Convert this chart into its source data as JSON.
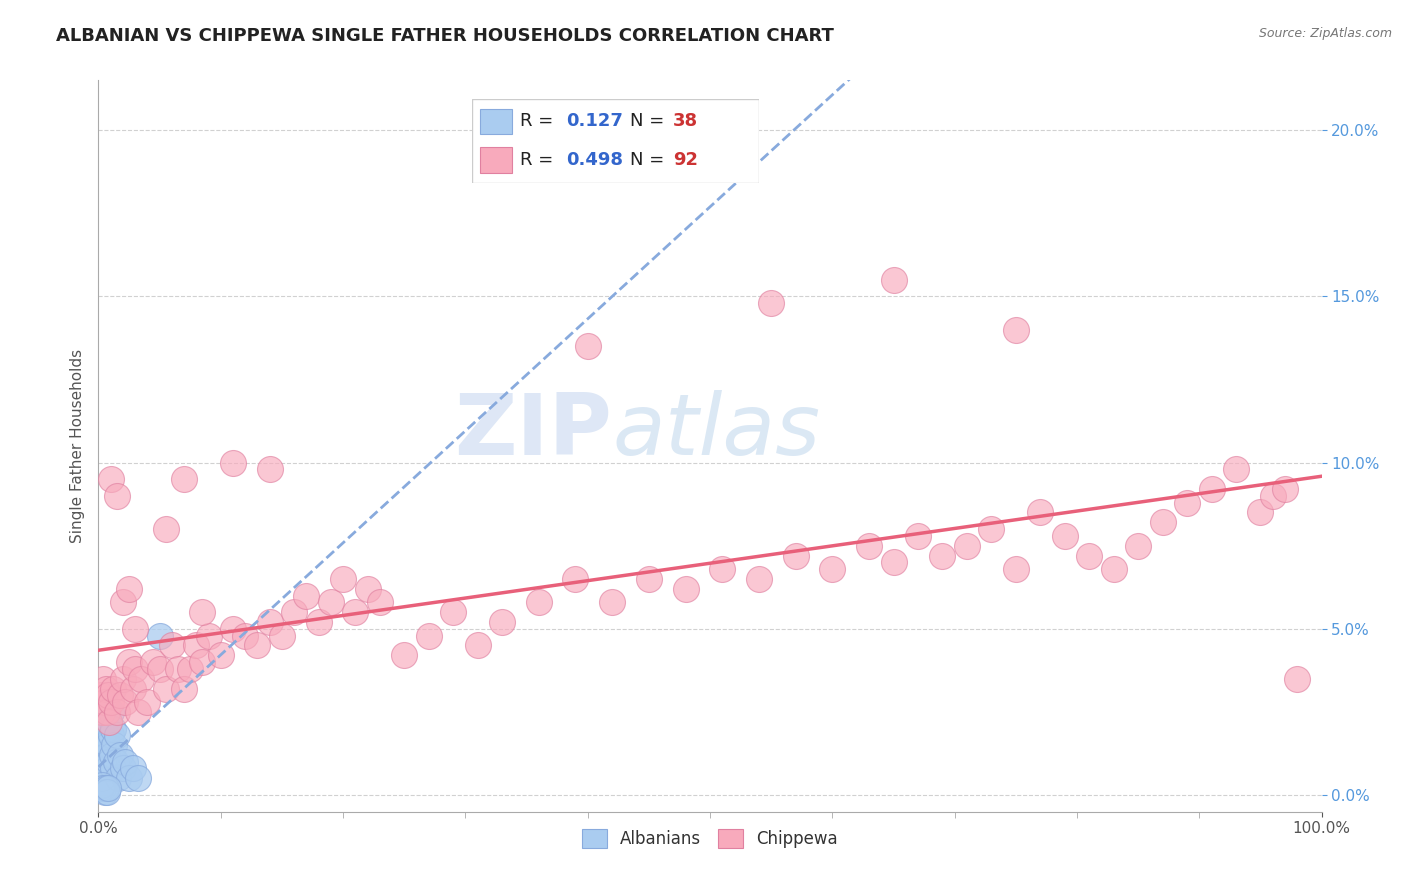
{
  "title": "ALBANIAN VS CHIPPEWA SINGLE FATHER HOUSEHOLDS CORRELATION CHART",
  "source": "Source: ZipAtlas.com",
  "ylabel": "Single Father Households",
  "watermark_zip": "ZIP",
  "watermark_atlas": "atlas",
  "xlim": [
    0.0,
    1.0
  ],
  "ylim": [
    -0.005,
    0.215
  ],
  "yticks": [
    0.0,
    0.05,
    0.1,
    0.15,
    0.2
  ],
  "albanian_R": 0.127,
  "albanian_N": 38,
  "chippewa_R": 0.498,
  "chippewa_N": 92,
  "albanian_color": "#aaccf0",
  "albanian_edge": "#88aadd",
  "chippewa_color": "#f8aabc",
  "chippewa_edge": "#e080a0",
  "albanian_line_color": "#88aadd",
  "chippewa_line_color": "#e8607a",
  "background_color": "#ffffff",
  "grid_color": "#cccccc",
  "title_fontsize": 13,
  "label_fontsize": 11,
  "tick_fontsize": 11,
  "right_tick_color": "#5599dd",
  "legend_R_color": "#3366cc",
  "legend_N_color": "#cc3333",
  "albanian_scatter_x": [
    0.002,
    0.003,
    0.003,
    0.004,
    0.004,
    0.005,
    0.005,
    0.005,
    0.006,
    0.006,
    0.007,
    0.007,
    0.008,
    0.008,
    0.009,
    0.01,
    0.01,
    0.011,
    0.012,
    0.012,
    0.013,
    0.014,
    0.015,
    0.016,
    0.018,
    0.02,
    0.022,
    0.025,
    0.028,
    0.032,
    0.002,
    0.003,
    0.004,
    0.005,
    0.006,
    0.007,
    0.008,
    0.05
  ],
  "albanian_scatter_y": [
    0.008,
    0.012,
    0.005,
    0.01,
    0.018,
    0.015,
    0.022,
    0.028,
    0.018,
    0.025,
    0.012,
    0.02,
    0.008,
    0.015,
    0.01,
    0.018,
    0.025,
    0.012,
    0.02,
    0.008,
    0.015,
    0.01,
    0.018,
    0.005,
    0.012,
    0.008,
    0.01,
    0.005,
    0.008,
    0.005,
    0.002,
    0.003,
    0.002,
    0.001,
    0.002,
    0.001,
    0.002,
    0.048
  ],
  "chippewa_scatter_x": [
    0.002,
    0.003,
    0.004,
    0.005,
    0.006,
    0.007,
    0.008,
    0.009,
    0.01,
    0.012,
    0.015,
    0.018,
    0.02,
    0.022,
    0.025,
    0.028,
    0.03,
    0.032,
    0.035,
    0.04,
    0.045,
    0.05,
    0.055,
    0.06,
    0.065,
    0.07,
    0.075,
    0.08,
    0.085,
    0.09,
    0.1,
    0.11,
    0.12,
    0.13,
    0.14,
    0.15,
    0.16,
    0.17,
    0.18,
    0.19,
    0.2,
    0.21,
    0.22,
    0.23,
    0.25,
    0.27,
    0.29,
    0.31,
    0.33,
    0.36,
    0.39,
    0.42,
    0.45,
    0.48,
    0.51,
    0.54,
    0.57,
    0.6,
    0.63,
    0.65,
    0.67,
    0.69,
    0.71,
    0.73,
    0.75,
    0.77,
    0.79,
    0.81,
    0.83,
    0.85,
    0.87,
    0.89,
    0.91,
    0.93,
    0.95,
    0.96,
    0.97,
    0.98,
    0.01,
    0.015,
    0.02,
    0.025,
    0.03,
    0.055,
    0.07,
    0.085,
    0.11,
    0.14,
    0.4,
    0.55,
    0.65,
    0.75
  ],
  "chippewa_scatter_y": [
    0.03,
    0.025,
    0.035,
    0.028,
    0.032,
    0.025,
    0.03,
    0.022,
    0.028,
    0.032,
    0.025,
    0.03,
    0.035,
    0.028,
    0.04,
    0.032,
    0.038,
    0.025,
    0.035,
    0.028,
    0.04,
    0.038,
    0.032,
    0.045,
    0.038,
    0.032,
    0.038,
    0.045,
    0.04,
    0.048,
    0.042,
    0.05,
    0.048,
    0.045,
    0.052,
    0.048,
    0.055,
    0.06,
    0.052,
    0.058,
    0.065,
    0.055,
    0.062,
    0.058,
    0.042,
    0.048,
    0.055,
    0.045,
    0.052,
    0.058,
    0.065,
    0.058,
    0.065,
    0.062,
    0.068,
    0.065,
    0.072,
    0.068,
    0.075,
    0.07,
    0.078,
    0.072,
    0.075,
    0.08,
    0.068,
    0.085,
    0.078,
    0.072,
    0.068,
    0.075,
    0.082,
    0.088,
    0.092,
    0.098,
    0.085,
    0.09,
    0.092,
    0.035,
    0.095,
    0.09,
    0.058,
    0.062,
    0.05,
    0.08,
    0.095,
    0.055,
    0.1,
    0.098,
    0.135,
    0.148,
    0.155,
    0.14
  ]
}
